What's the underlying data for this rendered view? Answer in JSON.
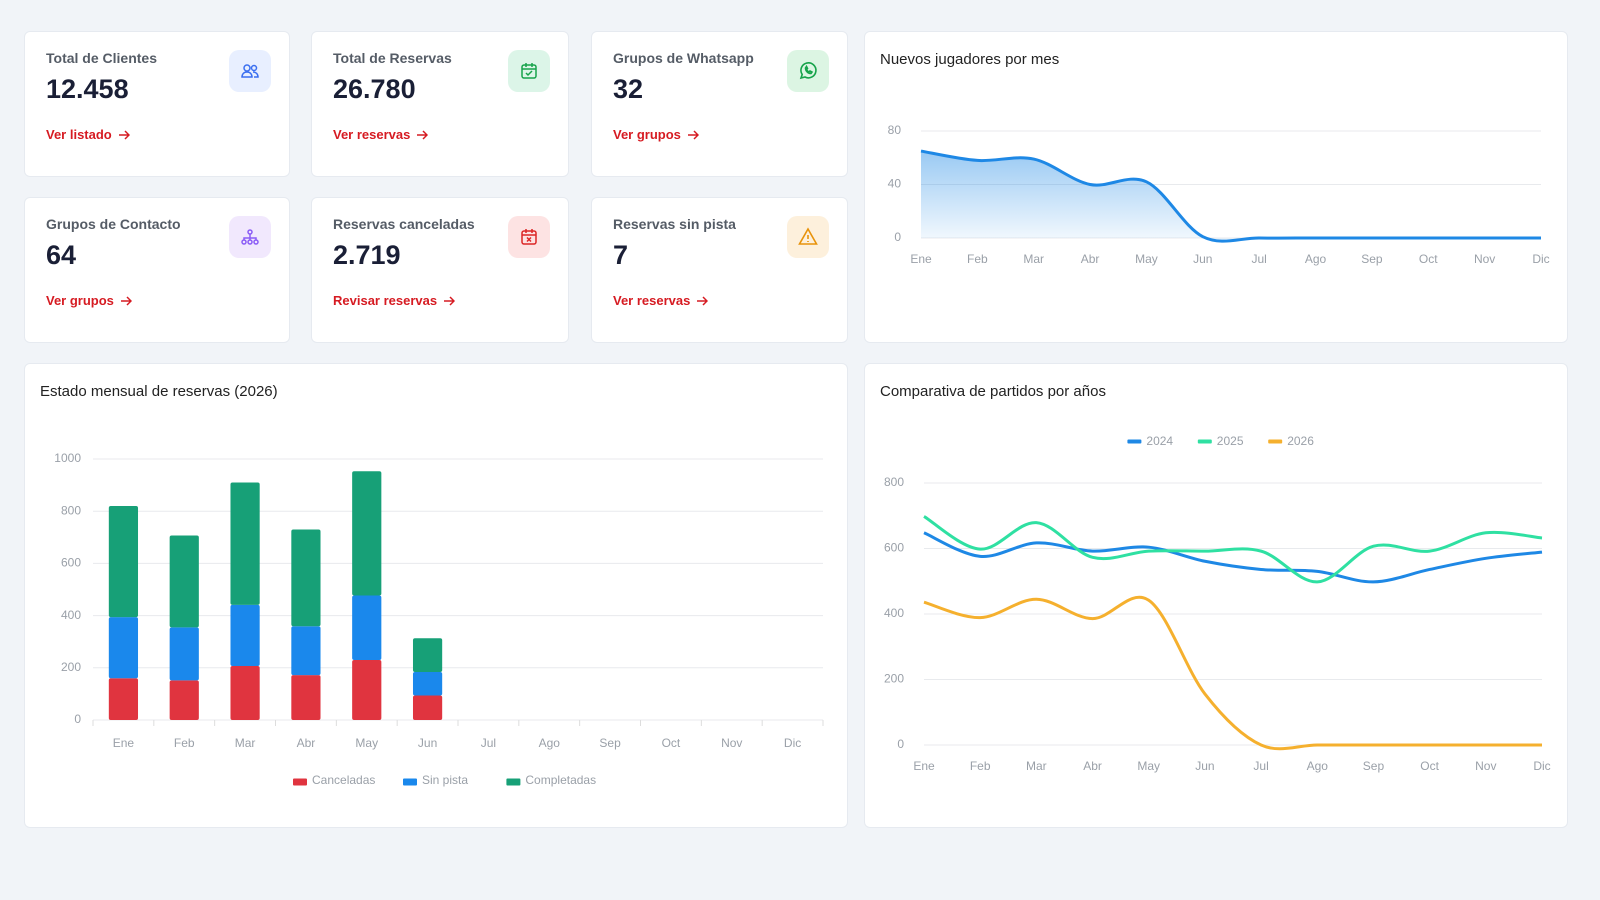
{
  "cards": [
    {
      "title": "Total de Clientes",
      "value": "12.458",
      "link": "Ver listado"
    },
    {
      "title": "Total de Reservas",
      "value": "26.780",
      "link": "Ver reservas"
    },
    {
      "title": "Grupos de Whatsapp",
      "value": "32",
      "link": "Ver grupos"
    },
    {
      "title": "Grupos de Contacto",
      "value": "64",
      "link": "Ver grupos"
    },
    {
      "title": "Reservas canceladas",
      "value": "2.719",
      "link": "Revisar reservas"
    },
    {
      "title": "Reservas sin pista",
      "value": "7",
      "link": "Ver reservas"
    }
  ],
  "chart_data": [
    {
      "type": "area",
      "title": "Nuevos jugadores por mes",
      "categories": [
        "Ene",
        "Feb",
        "Mar",
        "Abr",
        "May",
        "Jun",
        "Jul",
        "Ago",
        "Sep",
        "Oct",
        "Nov",
        "Dic"
      ],
      "values": [
        65,
        58,
        59,
        40,
        42,
        1,
        0,
        0,
        0,
        0,
        0,
        0
      ],
      "color": "#1e88e5",
      "ylim": [
        0,
        80
      ],
      "yticks": [
        0,
        40,
        80
      ],
      "grid": true
    },
    {
      "type": "bar",
      "title": "Estado mensual de reservas (2026)",
      "stacked": true,
      "categories": [
        "Ene",
        "Feb",
        "Mar",
        "Abr",
        "May",
        "Jun",
        "Jul",
        "Ago",
        "Sep",
        "Oct",
        "Nov",
        "Dic"
      ],
      "series": [
        {
          "name": "Canceladas",
          "color": "#e0343f",
          "values": [
            160,
            152,
            207,
            172,
            230,
            94,
            null,
            null,
            null,
            null,
            null,
            null
          ]
        },
        {
          "name": "Sin pista",
          "color": "#1a88ec",
          "values": [
            234,
            203,
            234,
            187,
            247,
            90,
            null,
            null,
            null,
            null,
            null,
            null
          ]
        },
        {
          "name": "Completadas",
          "color": "#17a077",
          "values": [
            426,
            352,
            469,
            371,
            476,
            129,
            null,
            null,
            null,
            null,
            null,
            null
          ]
        }
      ],
      "ylim": [
        0,
        1000
      ],
      "yticks": [
        0,
        200,
        400,
        600,
        800,
        1000
      ],
      "grid": true,
      "legend": "bottom"
    },
    {
      "type": "line",
      "title": "Comparativa de partidos por años",
      "categories": [
        "Ene",
        "Feb",
        "Mar",
        "Abr",
        "May",
        "Jun",
        "Jul",
        "Ago",
        "Sep",
        "Oct",
        "Nov",
        "Dic"
      ],
      "series": [
        {
          "name": "2024",
          "color": "#1e88e5",
          "values": [
            648,
            576,
            617,
            592,
            604,
            561,
            536,
            530,
            498,
            536,
            570,
            589
          ]
        },
        {
          "name": "2025",
          "color": "#2fe0a2",
          "values": [
            698,
            598,
            679,
            573,
            592,
            592,
            592,
            498,
            607,
            592,
            648,
            632
          ]
        },
        {
          "name": "2026",
          "color": "#f5b02e",
          "values": [
            436,
            389,
            445,
            386,
            442,
            156,
            0,
            0,
            0,
            0,
            0,
            0
          ]
        }
      ],
      "ylim": [
        0,
        800
      ],
      "yticks": [
        0,
        200,
        400,
        600,
        800
      ],
      "grid": true,
      "legend": "top"
    }
  ]
}
